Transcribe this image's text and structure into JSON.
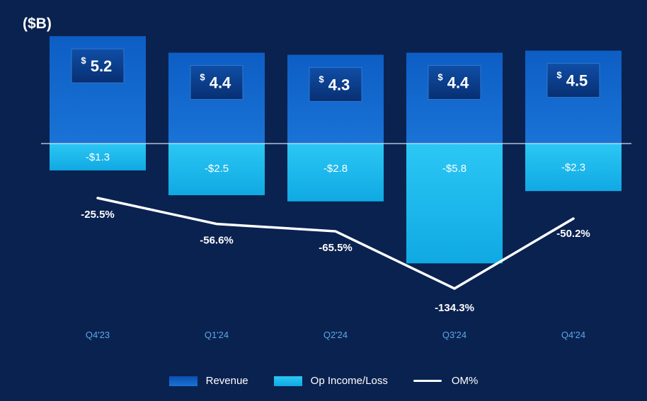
{
  "chart_data": {
    "type": "bar",
    "unit_label": "($B)",
    "categories": [
      "Q4'23",
      "Q1'24",
      "Q2'24",
      "Q3'24",
      "Q4'24"
    ],
    "series": [
      {
        "name": "Revenue",
        "values": [
          5.2,
          4.4,
          4.3,
          4.4,
          4.5
        ],
        "labels": [
          "5.2",
          "4.4",
          "4.3",
          "4.4",
          "4.5"
        ],
        "currency_symbol": "$"
      },
      {
        "name": "Op Income/Loss",
        "values": [
          -1.3,
          -2.5,
          -2.8,
          -5.8,
          -2.3
        ],
        "labels": [
          "-$1.3",
          "-$2.5",
          "-$2.8",
          "-$5.8",
          "-$2.3"
        ]
      },
      {
        "name": "OM%",
        "type": "line",
        "values": [
          -25.5,
          -56.6,
          -65.5,
          -134.3,
          -50.2
        ],
        "labels": [
          "-25.5%",
          "-56.6%",
          "-65.5%",
          "-134.3%",
          "-50.2%"
        ]
      }
    ],
    "legend": [
      "Revenue",
      "Op Income/Loss",
      "OM%"
    ],
    "legend_position": "bottom"
  },
  "colors": {
    "background": "#0a2250",
    "revenue": "#1565c9",
    "revenue_top": "#0b4fb0",
    "op_income": "#12b5ea",
    "op_income_light": "#29c6f2",
    "om_line": "#ffffff",
    "tick_text": "#5aa8e6"
  }
}
